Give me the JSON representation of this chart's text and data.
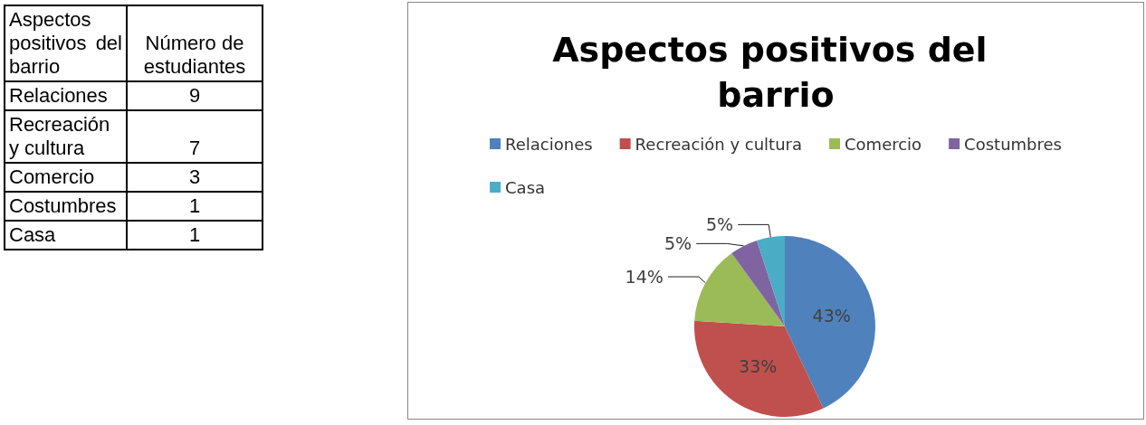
{
  "chart_data": [
    {
      "type": "other",
      "annotations": [
        "Aspectos positivos del barrio",
        "Número de estudiantes"
      ],
      "categories": [
        "Relaciones",
        "Recreación y cultura",
        "Comercio",
        "Costumbres",
        "Casa"
      ],
      "values": [
        9,
        7,
        3,
        1,
        1
      ],
      "data_labels": true
    },
    {
      "type": "pie",
      "title": "Aspectos positivos del barrio",
      "categories": [
        "Relaciones",
        "Recreación y cultura",
        "Comercio",
        "Costumbres",
        "Casa"
      ],
      "values": [
        43,
        33,
        14,
        5,
        5
      ],
      "colors": [
        "#4f81bd",
        "#c0504d",
        "#9bbb59",
        "#8064a2",
        "#4bacc6"
      ],
      "value_labels": [
        "43%",
        "33%",
        "14%",
        "5%",
        "5%"
      ],
      "legend": "top"
    }
  ]
}
